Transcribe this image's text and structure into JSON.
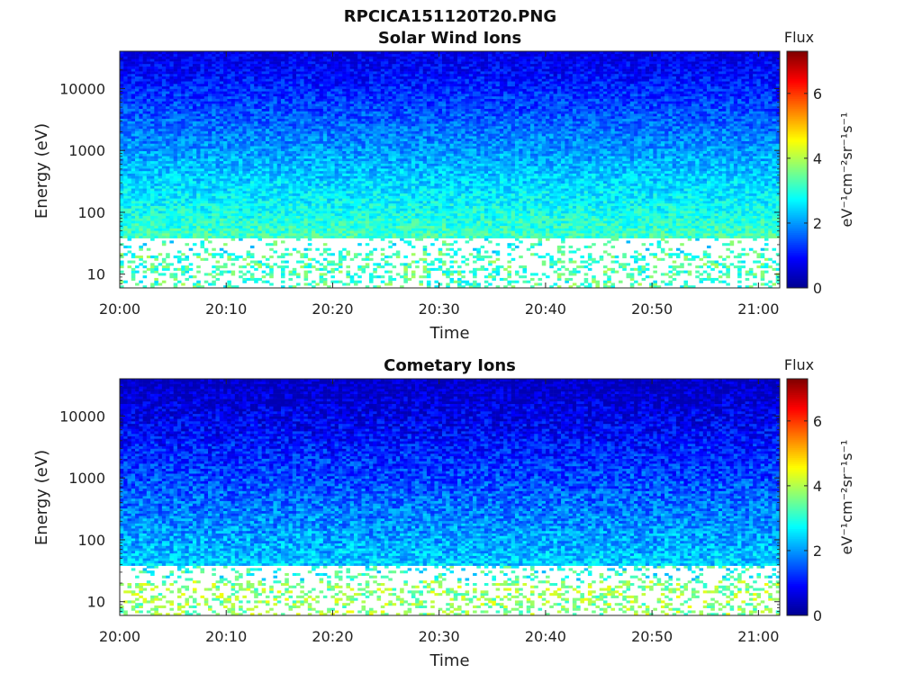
{
  "figure_title": "RPCICA151120T20.PNG",
  "colormap": [
    "#00008f",
    "#0000ff",
    "#0080ff",
    "#00ffff",
    "#80ff80",
    "#ffff00",
    "#ff8000",
    "#ff0000",
    "#800000"
  ],
  "chart_data": [
    {
      "type": "heatmap",
      "title": "Solar Wind Ions",
      "xlabel": "Time",
      "ylabel": "Energy (eV)",
      "xlim": [
        "20:00",
        "21:02"
      ],
      "ylim": [
        6,
        40000
      ],
      "yscale": "log",
      "x_ticks": [
        "20:00",
        "20:10",
        "20:20",
        "20:30",
        "20:40",
        "20:50",
        "21:00"
      ],
      "y_ticks": [
        "10",
        "100",
        "1000",
        "10000"
      ],
      "colorbar": {
        "label": "Flux",
        "unit": "eV⁻¹cm⁻²sr⁻¹s⁻¹",
        "range": [
          0,
          7.3
        ],
        "ticks": [
          "0",
          "2",
          "4",
          "6"
        ]
      }
    },
    {
      "type": "heatmap",
      "title": "Cometary Ions",
      "xlabel": "Time",
      "ylabel": "Energy (eV)",
      "xlim": [
        "20:00",
        "21:02"
      ],
      "ylim": [
        6,
        40000
      ],
      "yscale": "log",
      "x_ticks": [
        "20:00",
        "20:10",
        "20:20",
        "20:30",
        "20:40",
        "20:50",
        "21:00"
      ],
      "y_ticks": [
        "10",
        "100",
        "1000",
        "10000"
      ],
      "colorbar": {
        "label": "Flux",
        "unit": "eV⁻¹cm⁻²sr⁻¹s⁻¹",
        "range": [
          0,
          7.3
        ],
        "ticks": [
          "0",
          "2",
          "4",
          "6"
        ]
      }
    }
  ]
}
